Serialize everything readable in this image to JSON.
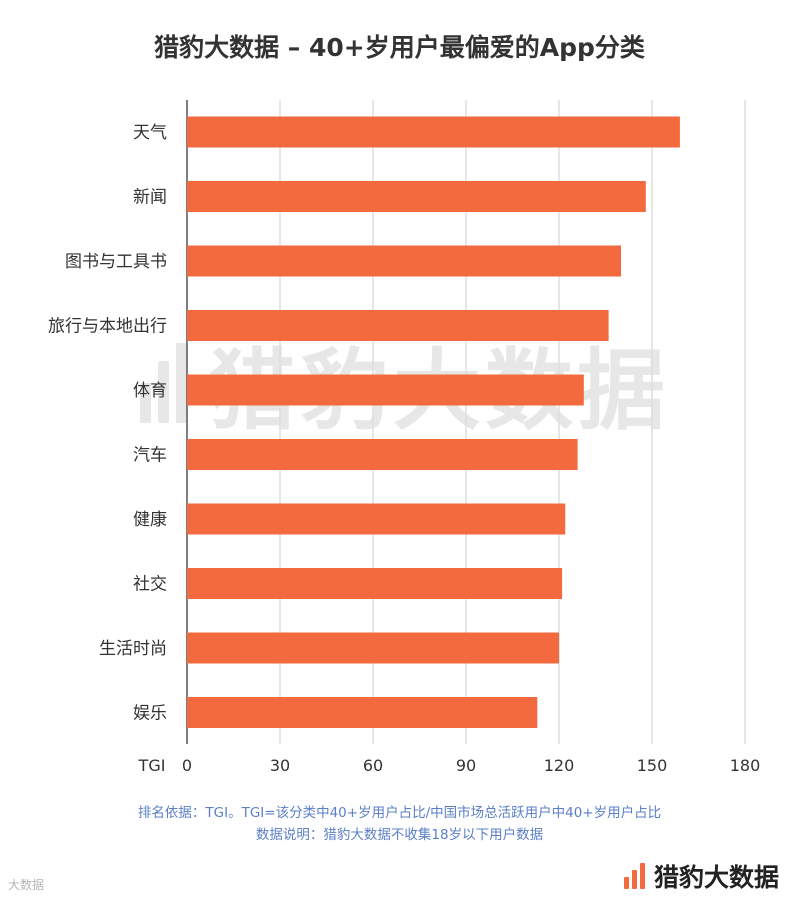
{
  "title": "猎豹大数据 – 40+岁用户最偏爱的App分类",
  "watermark_text": "猎豹大数据",
  "brand_text": "猎豹大数据",
  "corner_text": "大数据",
  "notes": {
    "line1": "排名依据：TGI。TGI=该分类中40+岁用户占比/中国市场总活跃用户中40+岁用户占比",
    "line2": "数据说明：猎豹大数据不收集18岁以下用户数据"
  },
  "colors": {
    "bar": "#f26a3d",
    "grid": "#dddddd",
    "axis": "#555555",
    "note": "#5b7fc7"
  },
  "chart_data": {
    "type": "bar",
    "orientation": "horizontal",
    "title": "猎豹大数据 – 40+岁用户最偏爱的App分类",
    "xlabel": "TGI",
    "ylabel": "",
    "categories": [
      "天气",
      "新闻",
      "图书与工具书",
      "旅行与本地出行",
      "体育",
      "汽车",
      "健康",
      "社交",
      "生活时尚",
      "娱乐"
    ],
    "values": [
      159,
      148,
      140,
      136,
      128,
      126,
      122,
      121,
      120,
      113
    ],
    "xlim": [
      0,
      180
    ],
    "xticks": [
      0,
      30,
      60,
      90,
      120,
      150,
      180
    ],
    "grid": true,
    "legend": "none"
  }
}
